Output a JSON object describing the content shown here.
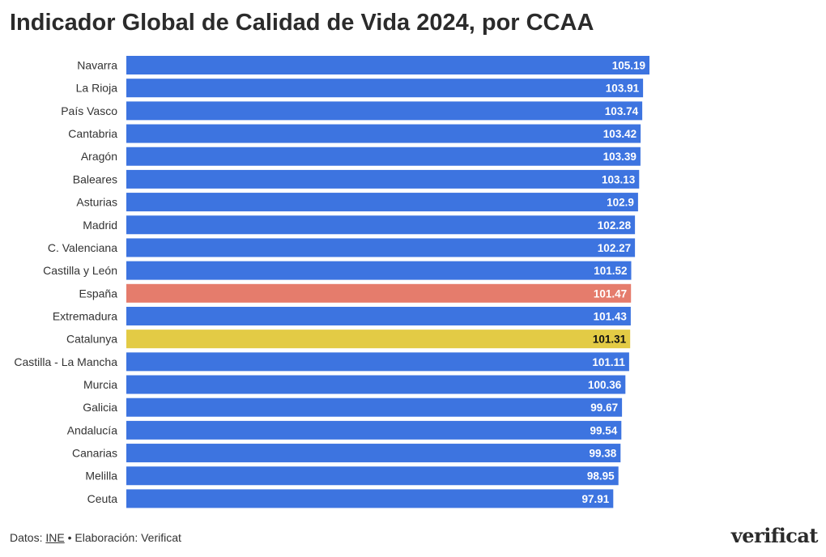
{
  "chart_data": {
    "type": "bar",
    "orientation": "horizontal",
    "title": "Indicador Global de Calidad de Vida 2024, por CCAA",
    "xlabel": "",
    "ylabel": "",
    "xlim": [
      0,
      105.19
    ],
    "categories": [
      "Navarra",
      "La Rioja",
      "País Vasco",
      "Cantabria",
      "Aragón",
      "Baleares",
      "Asturias",
      "Madrid",
      "C. Valenciana",
      "Castilla y León",
      "España",
      "Extremadura",
      "Catalunya",
      "Castilla - La Mancha",
      "Murcia",
      "Galicia",
      "Andalucía",
      "Canarias",
      "Melilla",
      "Ceuta"
    ],
    "values": [
      105.19,
      103.91,
      103.74,
      103.42,
      103.39,
      103.13,
      102.9,
      102.28,
      102.27,
      101.52,
      101.47,
      101.43,
      101.31,
      101.11,
      100.36,
      99.67,
      99.54,
      99.38,
      98.95,
      97.91
    ],
    "value_labels": [
      "105.19",
      "103.91",
      "103.74",
      "103.42",
      "103.39",
      "103.13",
      "102.9",
      "102.28",
      "102.27",
      "101.52",
      "101.47",
      "101.43",
      "101.31",
      "101.11",
      "100.36",
      "99.67",
      "99.54",
      "99.38",
      "98.95",
      "97.91"
    ],
    "highlights": {
      "España": "#e57c6c",
      "Catalunya": "#e3cb45"
    },
    "grid": false
  },
  "colors": {
    "default_bar": "#3d74e0",
    "spain_bar": "#e57c6c",
    "catalunya_bar": "#e3cb45",
    "label_light": "#ffffff",
    "label_dark": "#111111"
  },
  "footer": {
    "prefix": "Datos: ",
    "source_link": "INE",
    "suffix": " • Elaboración: Verificat"
  },
  "brand": {
    "logo_text": "verificat"
  }
}
